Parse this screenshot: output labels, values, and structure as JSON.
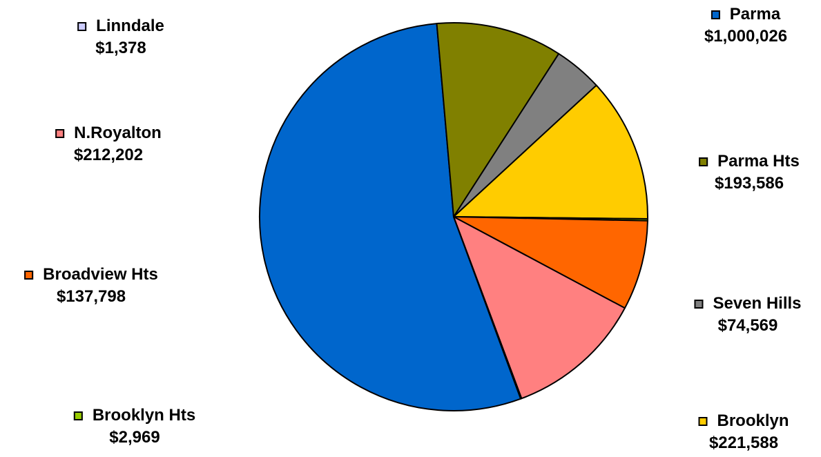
{
  "chart_data": {
    "type": "pie",
    "title": "",
    "slices": [
      {
        "label": "Parma",
        "value_label": "$1,000,026",
        "value": 1000026,
        "color": "#0066CC"
      },
      {
        "label": "Parma Hts",
        "value_label": "$193,586",
        "value": 193586,
        "color": "#808000"
      },
      {
        "label": "Seven Hills",
        "value_label": "$74,569",
        "value": 74569,
        "color": "#808080"
      },
      {
        "label": "Brooklyn",
        "value_label": "$221,588",
        "value": 221588,
        "color": "#FFCC00"
      },
      {
        "label": "Brooklyn Hts",
        "value_label": "$2,969",
        "value": 2969,
        "color": "#99CC00"
      },
      {
        "label": "Broadview Hts",
        "value_label": "$137,798",
        "value": 137798,
        "color": "#FF6600"
      },
      {
        "label": "N.Royalton",
        "value_label": "$212,202",
        "value": 212202,
        "color": "#FF8080"
      },
      {
        "label": "Linndale",
        "value_label": "$1,378",
        "value": 1378,
        "color": "#CCCCFF"
      }
    ],
    "legend": "labels-around-pie"
  }
}
